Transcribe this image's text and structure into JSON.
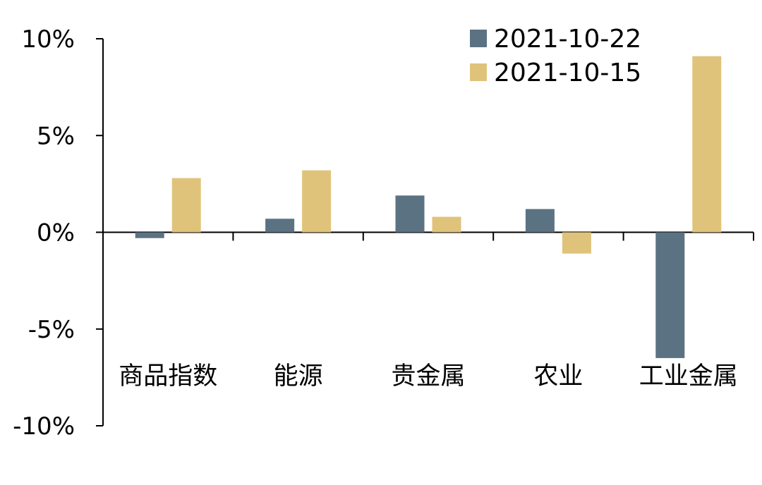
{
  "chart_data": {
    "type": "bar",
    "categories": [
      "商品指数",
      "能源",
      "贵金属",
      "农业",
      "工业金属"
    ],
    "series": [
      {
        "name": "2021-10-22",
        "color": "#5b7282",
        "values": [
          -0.3,
          0.7,
          1.9,
          1.2,
          -6.5
        ]
      },
      {
        "name": "2021-10-15",
        "color": "#e0c37b",
        "values": [
          2.8,
          3.2,
          0.8,
          -1.1,
          9.1
        ]
      }
    ],
    "ylim": [
      -10,
      10
    ],
    "yticks": [
      -10,
      -5,
      0,
      5,
      10
    ],
    "ytick_labels": [
      "-10%",
      "-5%",
      "0%",
      "5%",
      "10%"
    ],
    "title": "",
    "xlabel": "",
    "ylabel": "",
    "legend_position": "top-right",
    "grid": false
  }
}
